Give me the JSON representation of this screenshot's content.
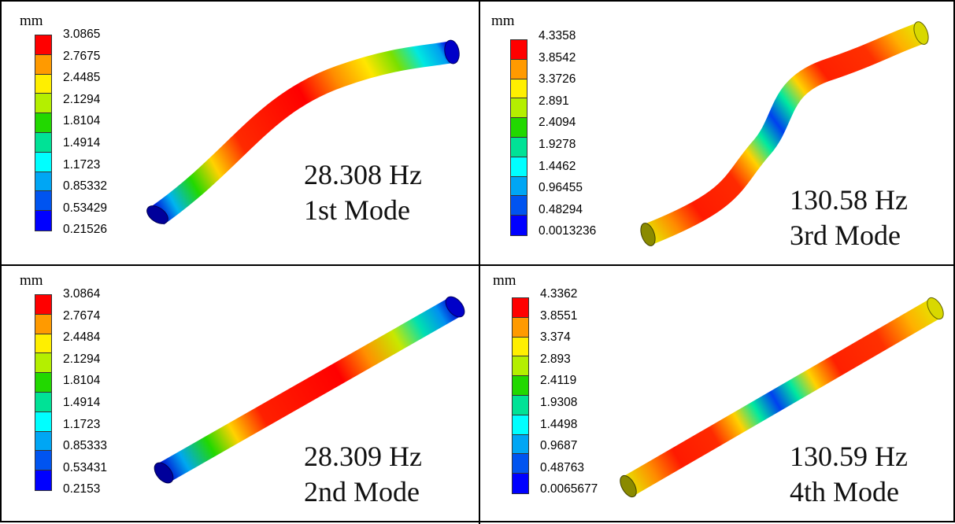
{
  "legend_colors": [
    "#ff0000",
    "#ff9a00",
    "#ffef00",
    "#b4ef00",
    "#22d800",
    "#00e296",
    "#00ffff",
    "#00a6f4",
    "#0054f0",
    "#0000ff"
  ],
  "panels": [
    {
      "id": "p1",
      "unit": "mm",
      "legend": [
        "3.0865",
        "2.7675",
        "2.4485",
        "2.1294",
        "1.8104",
        "1.4914",
        "1.1723",
        "0.85332",
        "0.53429",
        "0.21526"
      ],
      "frequency": "28.308 Hz",
      "mode": "1st Mode"
    },
    {
      "id": "p2",
      "unit": "mm",
      "legend": [
        "4.3358",
        "3.8542",
        "3.3726",
        "2.891",
        "2.4094",
        "1.9278",
        "1.4462",
        "0.96455",
        "0.48294",
        "0.0013236"
      ],
      "frequency": "130.58 Hz",
      "mode": "3rd Mode"
    },
    {
      "id": "p3",
      "unit": "mm",
      "legend": [
        "3.0864",
        "2.7674",
        "2.4484",
        "2.1294",
        "1.8104",
        "1.4914",
        "1.1723",
        "0.85333",
        "0.53431",
        "0.2153"
      ],
      "frequency": "28.309 Hz",
      "mode": "2nd Mode"
    },
    {
      "id": "p4",
      "unit": "mm",
      "legend": [
        "4.3362",
        "3.8551",
        "3.374",
        "2.893",
        "2.4119",
        "1.9308",
        "1.4498",
        "0.9687",
        "0.48763",
        "0.0065677"
      ],
      "frequency": "130.59 Hz",
      "mode": "4th Mode"
    }
  ]
}
